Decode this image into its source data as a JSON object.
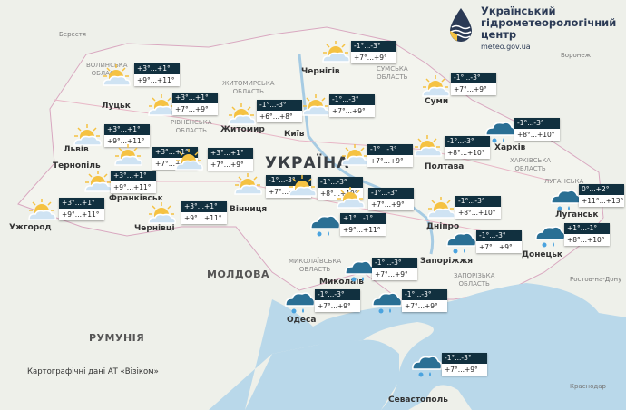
{
  "logo": {
    "line1": "Український",
    "line2": "гідрометеорологічний",
    "line3": "центр",
    "url": "meteo.gov.ua"
  },
  "attribution": "Картографічні дані АТ «Візіком»",
  "colors": {
    "label_header": "#11303f",
    "sea": "#b9d8ea",
    "land": "#eef0ea",
    "sun": "#f5c242",
    "cloud": "#cfe3f3",
    "snow_cloud": "#2a6f94"
  },
  "country_label": "УКРАЇНА",
  "countries": [
    "МОЛДОВА",
    "РУМУНІЯ"
  ],
  "cities": [
    "Берестя",
    "Луцьк",
    "Львів",
    "Тернопіль",
    "Франківськ",
    "Ужгород",
    "Чернівці",
    "Житомир",
    "Київ",
    "Чернігів",
    "Суми",
    "Полтава",
    "Харків",
    "Дніпро",
    "Запоріжжя",
    "Донецьк",
    "Луганськ",
    "Одеса",
    "Миколаїв",
    "Вінниця",
    "Севастополь"
  ],
  "foreign_cities": [
    "Воронеж",
    "Ростов-на-Дону",
    "Краснодар"
  ],
  "regions": [
    "СУМСЬКА\nОБЛАСТЬ",
    "ХАРКІВСЬКА\nОБЛАСТЬ",
    "ЗАПОРІЗЬКА\nОБЛАСТЬ",
    "МИКОЛАЇВСЬКА\nОБЛАСТЬ",
    "ЛУГАНСЬКА",
    "ЖИТОМИРСЬКА\nОБЛАСТЬ",
    "ВОЛИНСЬКА\nОБЛАСТЬ",
    "РІВНЕНСЬКА\nОБЛАСТЬ"
  ],
  "forecasts": [
    {
      "icon": "partly-cloudy",
      "night": "+3°...+1°",
      "day": "+9°...+11°"
    },
    {
      "icon": "partly-cloudy",
      "night": "+3°...+1°",
      "day": "+7°...+9°"
    },
    {
      "icon": "partly-cloudy",
      "night": "-1°...-3°",
      "day": "+6°...+8°"
    },
    {
      "icon": "partly-cloudy",
      "night": "-1°...-3°",
      "day": "+7°...+9°"
    },
    {
      "icon": "partly-cloudy",
      "night": "-1°...-3°",
      "day": "+7°...+9°"
    },
    {
      "icon": "partly-cloudy",
      "night": "-1°...-3°",
      "day": "+7°...+9°"
    },
    {
      "icon": "snow-rain",
      "night": "-1°...-3°",
      "day": "+8°...+10°"
    },
    {
      "icon": "partly-cloudy",
      "night": "-1°...-3°",
      "day": "+8°...+10°"
    },
    {
      "icon": "partly-cloudy",
      "night": "-1°...-3°",
      "day": "+7°...+9°"
    },
    {
      "icon": "partly-cloudy",
      "night": "+3°...+1°",
      "day": "+9°...+11°"
    },
    {
      "icon": "partly-cloudy",
      "night": "+3°...+1°",
      "day": "+7°...+9°"
    },
    {
      "icon": "partly-cloudy",
      "night": "+3°...+1°",
      "day": "+7°...+9°"
    },
    {
      "icon": "partly-cloudy",
      "night": "+3°...+1°",
      "day": "+9°...+11°"
    },
    {
      "icon": "partly-cloudy",
      "night": "+3°...+1°",
      "day": "+9°...+11°"
    },
    {
      "icon": "partly-cloudy",
      "night": "+3°...+1°",
      "day": "+9°...+11°"
    },
    {
      "icon": "partly-cloudy",
      "night": "-1°...-3°",
      "day": "+7°...+9°"
    },
    {
      "icon": "partly-cloudy",
      "night": "-1°...-3°",
      "day": "+8°...+10°"
    },
    {
      "icon": "partly-cloudy",
      "night": "-1°...-3°",
      "day": "+7°...+9°"
    },
    {
      "icon": "partly-cloudy",
      "night": "-1°...-3°",
      "day": "+8°...+10°"
    },
    {
      "icon": "snow-rain",
      "night": "+1°...-1°",
      "day": "+9°...+11°"
    },
    {
      "icon": "snow-rain",
      "night": "-1°...-3°",
      "day": "+7°...+9°"
    },
    {
      "icon": "snow-rain",
      "night": "0°...+2°",
      "day": "+11°...+13°"
    },
    {
      "icon": "snow-rain",
      "night": "+1°...-1°",
      "day": "+8°...+10°"
    },
    {
      "icon": "snow-rain",
      "night": "-1°...-3°",
      "day": "+7°...+9°"
    },
    {
      "icon": "snow-rain",
      "night": "-1°...-3°",
      "day": "+7°...+9°"
    },
    {
      "icon": "snow-rain",
      "night": "-1°...-3°",
      "day": "+7°...+9°"
    },
    {
      "icon": "snow-rain",
      "night": "-1°...-3°",
      "day": "+7°...+9°"
    }
  ]
}
